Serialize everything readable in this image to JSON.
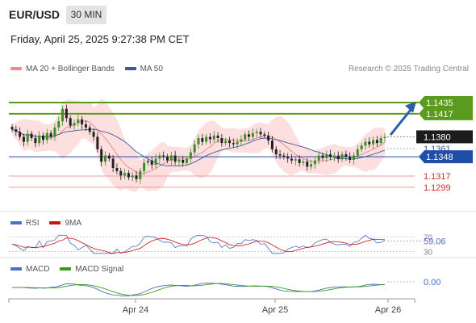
{
  "header": {
    "symbol": "EUR/USD",
    "timeframe": "30 MIN",
    "datetime": "Friday, April 25, 2025 9:27:38 PM CET",
    "credit": "Research © 2025 Trading Central"
  },
  "legends": {
    "main": [
      {
        "label": "MA 20 + Bollinger Bands",
        "color": "#f08c84"
      },
      {
        "label": "MA 50",
        "color": "#3b5a9a"
      }
    ],
    "rsi": [
      {
        "label": "RSI",
        "color": "#4a6fc4"
      },
      {
        "label": "9MA",
        "color": "#cc1111"
      }
    ],
    "macd": [
      {
        "label": "MACD",
        "color": "#4a6fc4"
      },
      {
        "label": "MACD Signal",
        "color": "#3a9a1a"
      }
    ]
  },
  "colors": {
    "support_resistance": "#5a9a1c",
    "pivot": "#1e4ea8",
    "red_level": "#d12b2b",
    "bull": "#3d8c2a",
    "bear": "#222222",
    "band_fill": "#fdd9d9",
    "arrow": "#2c5fa8"
  },
  "chart_data": {
    "type": "candlestick",
    "x_ticks": [
      "Apr 24",
      "Apr 25",
      "Apr 26"
    ],
    "ylim": [
      1.126,
      1.147
    ],
    "levels": [
      {
        "label": "1.1435",
        "value": 1.1435,
        "kind": "resistance"
      },
      {
        "label": "1.1417",
        "value": 1.1417,
        "kind": "resistance"
      },
      {
        "label": "1.1380",
        "value": 1.138,
        "kind": "last"
      },
      {
        "label": "1.1361",
        "value": 1.1361,
        "kind": "ma"
      },
      {
        "label": "1.1348",
        "value": 1.1348,
        "kind": "pivot"
      },
      {
        "label": "1.1317",
        "value": 1.1317,
        "kind": "support"
      },
      {
        "label": "1.1299",
        "value": 1.1299,
        "kind": "support"
      }
    ],
    "closes": [
      1.1392,
      1.1388,
      1.138,
      1.1372,
      1.1385,
      1.1378,
      1.137,
      1.1382,
      1.1375,
      1.1386,
      1.138,
      1.1395,
      1.1405,
      1.1425,
      1.141,
      1.1398,
      1.1402,
      1.1408,
      1.14,
      1.1395,
      1.1388,
      1.138,
      1.136,
      1.134,
      1.135,
      1.1345,
      1.133,
      1.1325,
      1.1318,
      1.1322,
      1.1315,
      1.1318,
      1.1312,
      1.1325,
      1.1338,
      1.1342,
      1.1335,
      1.1345,
      1.135,
      1.1348,
      1.1342,
      1.135,
      1.134,
      1.1343,
      1.1338,
      1.1345,
      1.1355,
      1.1368,
      1.1378,
      1.1372,
      1.138,
      1.1376,
      1.1382,
      1.1378,
      1.137,
      1.1374,
      1.137,
      1.1368,
      1.1372,
      1.1376,
      1.1384,
      1.138,
      1.1386,
      1.1388,
      1.1384,
      1.1382,
      1.1374,
      1.136,
      1.1352,
      1.135,
      1.1348,
      1.1345,
      1.1342,
      1.1344,
      1.1338,
      1.134,
      1.1332,
      1.1336,
      1.1342,
      1.135,
      1.1346,
      1.1352,
      1.1348,
      1.135,
      1.1344,
      1.1352,
      1.1348,
      1.1343,
      1.135,
      1.136,
      1.1366,
      1.1372,
      1.1368,
      1.1375,
      1.137,
      1.1378,
      1.138
    ],
    "rsi": {
      "label_value": "59.06",
      "levels": [
        70,
        30
      ],
      "ylim": [
        20,
        80
      ]
    },
    "macd": {
      "label_value": "0.00"
    }
  }
}
